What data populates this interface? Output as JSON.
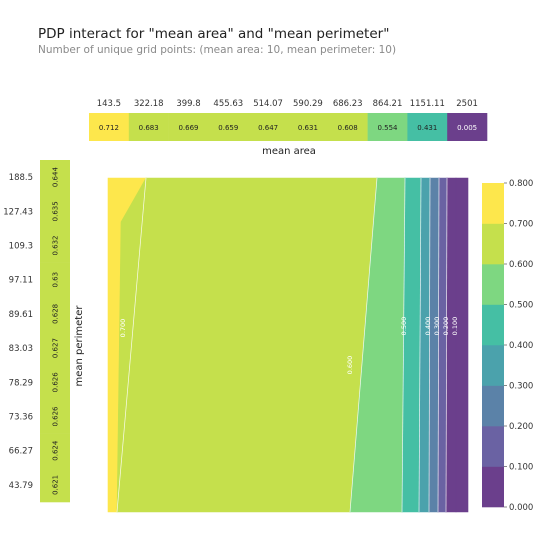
{
  "chart_data": {
    "type": "contour",
    "title": "PDP interact for \"mean area\" and \"mean perimeter\"",
    "subtitle": "Number of unique grid points: (mean area: 10, mean perimeter: 10)",
    "xlabel": "mean area",
    "ylabel": "mean perimeter",
    "top_marginal": {
      "feature": "mean area",
      "grid": [
        "143.5",
        "322.18",
        "399.8",
        "455.63",
        "514.07",
        "590.29",
        "686.23",
        "864.21",
        "1151.11",
        "2501"
      ],
      "values": [
        0.712,
        0.683,
        0.669,
        0.659,
        0.647,
        0.631,
        0.608,
        0.554,
        0.431,
        0.005
      ],
      "labels": [
        "0.712",
        "0.683",
        "0.669",
        "0.659",
        "0.647",
        "0.631",
        "0.608",
        "0.554",
        "0.431",
        "0.005"
      ]
    },
    "left_marginal": {
      "feature": "mean perimeter",
      "grid": [
        "188.5",
        "127.43",
        "109.3",
        "97.11",
        "89.61",
        "83.03",
        "78.29",
        "73.36",
        "66.27",
        "43.79"
      ],
      "values": [
        0.644,
        0.635,
        0.632,
        0.63,
        0.628,
        0.627,
        0.626,
        0.626,
        0.624,
        0.621
      ],
      "labels": [
        "0.644",
        "0.635",
        "0.632",
        "0.63",
        "0.628",
        "0.627",
        "0.626",
        "0.626",
        "0.624",
        "0.621"
      ]
    },
    "contour_levels": [
      0.0,
      0.1,
      0.2,
      0.3,
      0.4,
      0.5,
      0.6,
      0.7,
      0.8
    ],
    "contour_labels": [
      "0.700",
      "0.600",
      "0.500",
      "0.400",
      "0.300",
      "0.200",
      "0.100"
    ],
    "colorbar_ticks": [
      "0.000",
      "0.100",
      "0.200",
      "0.300",
      "0.400",
      "0.500",
      "0.600",
      "0.700",
      "0.800"
    ],
    "colors": {
      "0.0-0.1": "#6b3f8c",
      "0.1-0.2": "#6a62a3",
      "0.2-0.3": "#5b82a8",
      "0.3-0.4": "#4ba2ac",
      "0.4-0.5": "#45bfa4",
      "0.5-0.6": "#7ed781",
      "0.6-0.7": "#c5e04c",
      "0.7-0.8": "#fde74c"
    }
  }
}
